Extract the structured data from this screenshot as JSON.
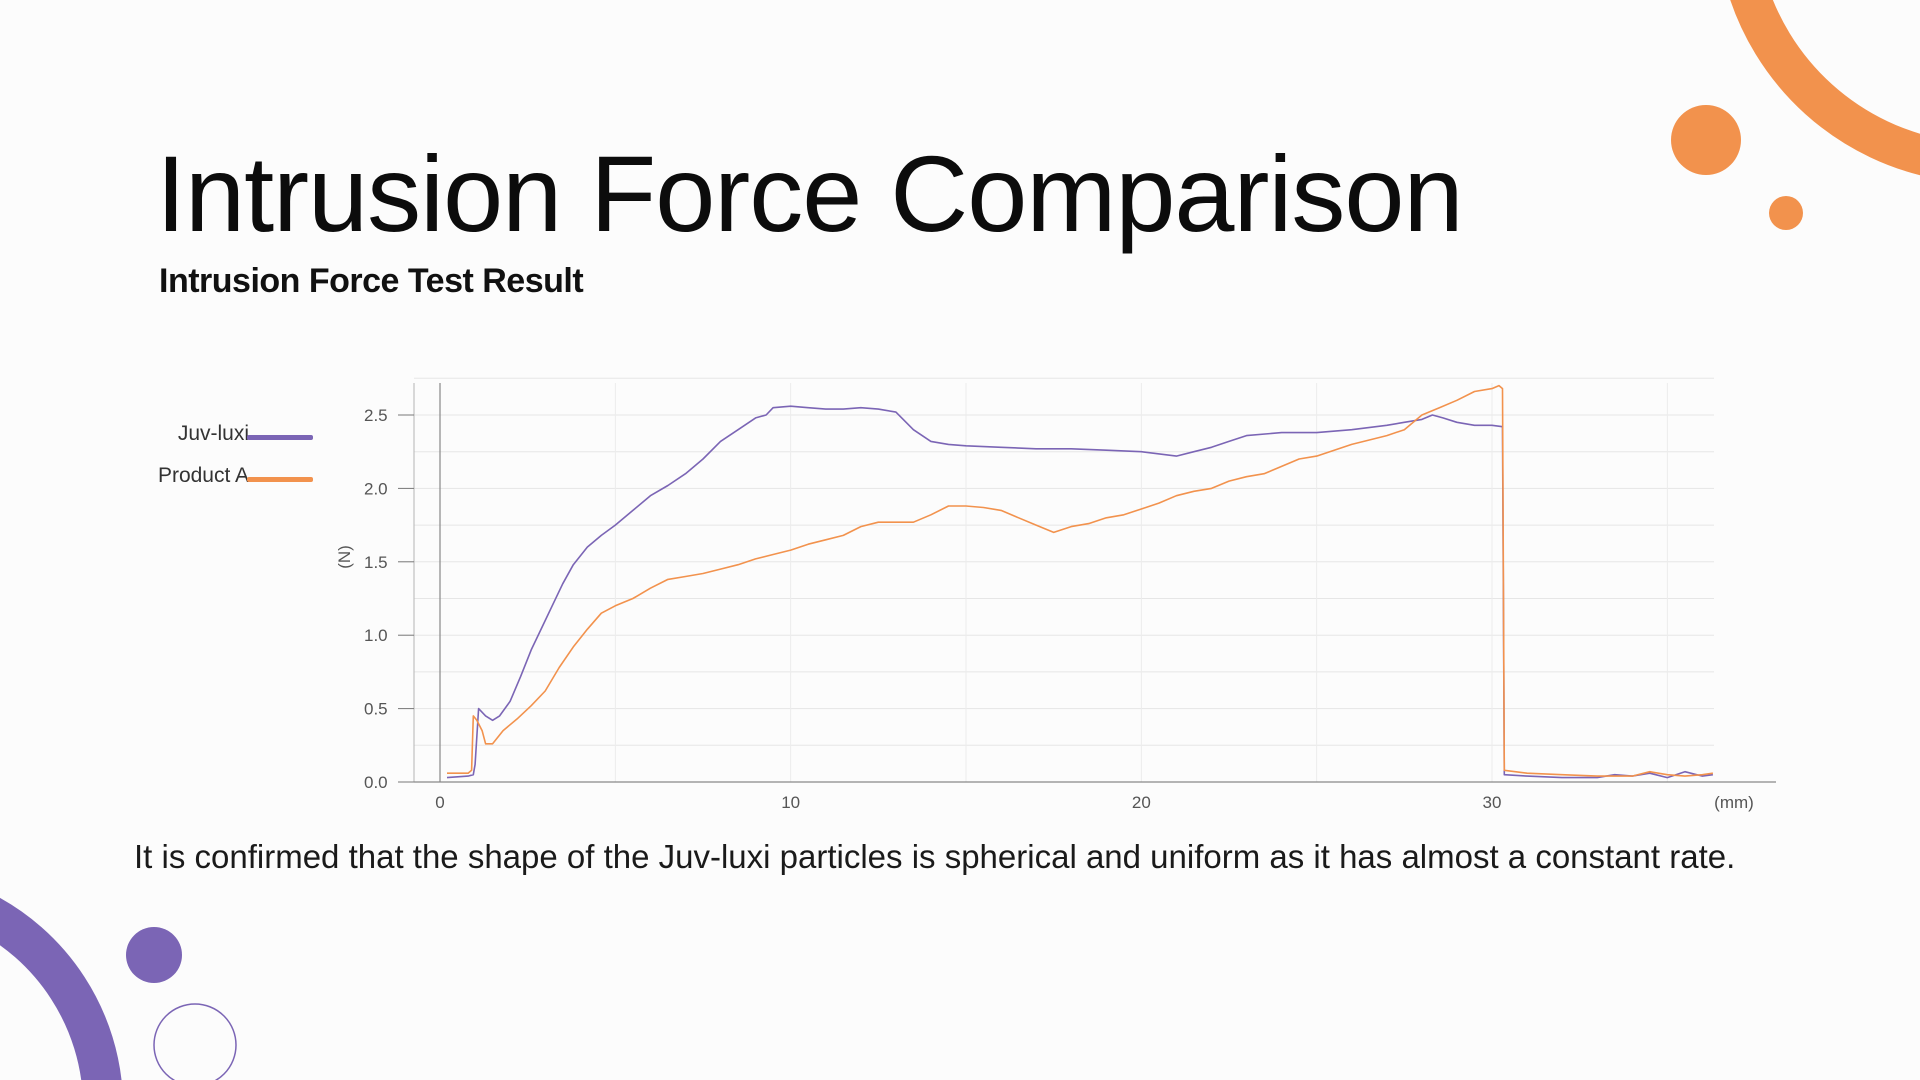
{
  "slide": {
    "title": "Intrusion Force Comparison",
    "subtitle": "Intrusion Force Test Result",
    "caption": "It is confirmed that the shape of the Juv-luxi particles is spherical and uniform as it has almost a constant rate."
  },
  "colors": {
    "purple": "#7b65b5",
    "orange": "#f2924d",
    "background": "#fcfcfc"
  },
  "legend": [
    {
      "label": "Juv-luxi",
      "color": "#7b65b5"
    },
    {
      "label": "Product A",
      "color": "#f2924d"
    }
  ],
  "chart_data": {
    "type": "line",
    "title": "",
    "xlabel": "(mm)",
    "ylabel": "(N)",
    "xlim": [
      0,
      36.5
    ],
    "ylim": [
      0,
      2.7
    ],
    "x_ticks": [
      "0",
      "10",
      "20",
      "30"
    ],
    "y_ticks": [
      "0.0",
      "0.5",
      "1.0",
      "1.5",
      "2.0",
      "2.5"
    ],
    "grid": true,
    "legend_position": "left",
    "series": [
      {
        "name": "Juv-luxi",
        "color": "#7b65b5",
        "points": [
          [
            0.2,
            0.03
          ],
          [
            0.8,
            0.04
          ],
          [
            0.95,
            0.05
          ],
          [
            1.0,
            0.12
          ],
          [
            1.1,
            0.5
          ],
          [
            1.3,
            0.45
          ],
          [
            1.5,
            0.42
          ],
          [
            1.7,
            0.45
          ],
          [
            2.0,
            0.55
          ],
          [
            2.3,
            0.72
          ],
          [
            2.6,
            0.9
          ],
          [
            2.9,
            1.05
          ],
          [
            3.2,
            1.2
          ],
          [
            3.5,
            1.35
          ],
          [
            3.8,
            1.48
          ],
          [
            4.2,
            1.6
          ],
          [
            4.6,
            1.68
          ],
          [
            5.0,
            1.75
          ],
          [
            5.5,
            1.85
          ],
          [
            6.0,
            1.95
          ],
          [
            6.5,
            2.02
          ],
          [
            7.0,
            2.1
          ],
          [
            7.5,
            2.2
          ],
          [
            8.0,
            2.32
          ],
          [
            8.5,
            2.4
          ],
          [
            9.0,
            2.48
          ],
          [
            9.3,
            2.5
          ],
          [
            9.5,
            2.55
          ],
          [
            10.0,
            2.56
          ],
          [
            10.5,
            2.55
          ],
          [
            11.0,
            2.54
          ],
          [
            11.5,
            2.54
          ],
          [
            12.0,
            2.55
          ],
          [
            12.5,
            2.54
          ],
          [
            13.0,
            2.52
          ],
          [
            13.5,
            2.4
          ],
          [
            14.0,
            2.32
          ],
          [
            14.5,
            2.3
          ],
          [
            15.0,
            2.29
          ],
          [
            16.0,
            2.28
          ],
          [
            17.0,
            2.27
          ],
          [
            18.0,
            2.27
          ],
          [
            19.0,
            2.26
          ],
          [
            20.0,
            2.25
          ],
          [
            21.0,
            2.22
          ],
          [
            21.5,
            2.25
          ],
          [
            22.0,
            2.28
          ],
          [
            22.5,
            2.32
          ],
          [
            23.0,
            2.36
          ],
          [
            24.0,
            2.38
          ],
          [
            25.0,
            2.38
          ],
          [
            26.0,
            2.4
          ],
          [
            27.0,
            2.43
          ],
          [
            27.5,
            2.45
          ],
          [
            28.0,
            2.47
          ],
          [
            28.3,
            2.5
          ],
          [
            28.6,
            2.48
          ],
          [
            29.0,
            2.45
          ],
          [
            29.5,
            2.43
          ],
          [
            30.0,
            2.43
          ],
          [
            30.3,
            2.42
          ],
          [
            30.35,
            0.05
          ],
          [
            31.0,
            0.04
          ],
          [
            32.0,
            0.03
          ],
          [
            33.0,
            0.03
          ],
          [
            33.5,
            0.05
          ],
          [
            34.0,
            0.04
          ],
          [
            34.5,
            0.06
          ],
          [
            35.0,
            0.03
          ],
          [
            35.5,
            0.07
          ],
          [
            36.0,
            0.04
          ],
          [
            36.3,
            0.05
          ]
        ]
      },
      {
        "name": "Product A",
        "color": "#f2924d",
        "points": [
          [
            0.2,
            0.06
          ],
          [
            0.8,
            0.06
          ],
          [
            0.9,
            0.08
          ],
          [
            0.95,
            0.45
          ],
          [
            1.05,
            0.42
          ],
          [
            1.2,
            0.35
          ],
          [
            1.3,
            0.26
          ],
          [
            1.5,
            0.26
          ],
          [
            1.8,
            0.35
          ],
          [
            2.2,
            0.43
          ],
          [
            2.6,
            0.52
          ],
          [
            3.0,
            0.62
          ],
          [
            3.4,
            0.78
          ],
          [
            3.8,
            0.92
          ],
          [
            4.2,
            1.04
          ],
          [
            4.6,
            1.15
          ],
          [
            5.0,
            1.2
          ],
          [
            5.5,
            1.25
          ],
          [
            6.0,
            1.32
          ],
          [
            6.5,
            1.38
          ],
          [
            7.0,
            1.4
          ],
          [
            7.5,
            1.42
          ],
          [
            8.0,
            1.45
          ],
          [
            8.5,
            1.48
          ],
          [
            9.0,
            1.52
          ],
          [
            9.5,
            1.55
          ],
          [
            10.0,
            1.58
          ],
          [
            10.5,
            1.62
          ],
          [
            11.0,
            1.65
          ],
          [
            11.5,
            1.68
          ],
          [
            12.0,
            1.74
          ],
          [
            12.5,
            1.77
          ],
          [
            13.0,
            1.77
          ],
          [
            13.5,
            1.77
          ],
          [
            14.0,
            1.82
          ],
          [
            14.5,
            1.88
          ],
          [
            15.0,
            1.88
          ],
          [
            15.5,
            1.87
          ],
          [
            16.0,
            1.85
          ],
          [
            16.5,
            1.8
          ],
          [
            17.0,
            1.75
          ],
          [
            17.5,
            1.7
          ],
          [
            18.0,
            1.74
          ],
          [
            18.5,
            1.76
          ],
          [
            19.0,
            1.8
          ],
          [
            19.5,
            1.82
          ],
          [
            20.0,
            1.86
          ],
          [
            20.5,
            1.9
          ],
          [
            21.0,
            1.95
          ],
          [
            21.5,
            1.98
          ],
          [
            22.0,
            2.0
          ],
          [
            22.5,
            2.05
          ],
          [
            23.0,
            2.08
          ],
          [
            23.5,
            2.1
          ],
          [
            24.0,
            2.15
          ],
          [
            24.5,
            2.2
          ],
          [
            25.0,
            2.22
          ],
          [
            25.5,
            2.26
          ],
          [
            26.0,
            2.3
          ],
          [
            26.5,
            2.33
          ],
          [
            27.0,
            2.36
          ],
          [
            27.5,
            2.4
          ],
          [
            28.0,
            2.5
          ],
          [
            28.5,
            2.55
          ],
          [
            29.0,
            2.6
          ],
          [
            29.5,
            2.66
          ],
          [
            30.0,
            2.68
          ],
          [
            30.2,
            2.7
          ],
          [
            30.3,
            2.68
          ],
          [
            30.35,
            0.08
          ],
          [
            31.0,
            0.06
          ],
          [
            32.0,
            0.05
          ],
          [
            33.0,
            0.04
          ],
          [
            34.0,
            0.04
          ],
          [
            34.5,
            0.07
          ],
          [
            35.0,
            0.05
          ],
          [
            35.5,
            0.04
          ],
          [
            36.0,
            0.05
          ],
          [
            36.3,
            0.06
          ]
        ]
      }
    ]
  }
}
